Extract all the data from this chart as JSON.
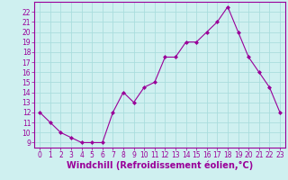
{
  "x": [
    0,
    1,
    2,
    3,
    4,
    5,
    6,
    7,
    8,
    9,
    10,
    11,
    12,
    13,
    14,
    15,
    16,
    17,
    18,
    19,
    20,
    21,
    22,
    23
  ],
  "y": [
    12,
    11,
    10,
    9.5,
    9,
    9,
    9,
    12,
    14,
    13,
    14.5,
    15,
    17.5,
    17.5,
    19,
    19,
    20,
    21,
    22.5,
    20,
    17.5,
    16,
    14.5,
    12
  ],
  "line_color": "#990099",
  "marker": "D",
  "marker_size": 2.0,
  "bg_color": "#cff0f0",
  "grid_color": "#aadddd",
  "xlabel": "Windchill (Refroidissement éolien,°C)",
  "xlabel_color": "#990099",
  "tick_color": "#990099",
  "xlim": [
    -0.5,
    23.5
  ],
  "ylim": [
    8.5,
    23.0
  ],
  "yticks": [
    9,
    10,
    11,
    12,
    13,
    14,
    15,
    16,
    17,
    18,
    19,
    20,
    21,
    22
  ],
  "xticks": [
    0,
    1,
    2,
    3,
    4,
    5,
    6,
    7,
    8,
    9,
    10,
    11,
    12,
    13,
    14,
    15,
    16,
    17,
    18,
    19,
    20,
    21,
    22,
    23
  ],
  "tick_fontsize": 5.5,
  "xlabel_fontsize": 7.0
}
